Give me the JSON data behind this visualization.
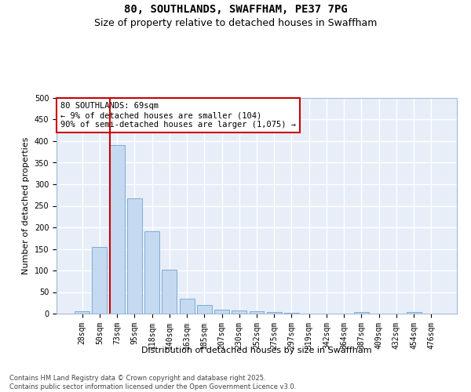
{
  "title": "80, SOUTHLANDS, SWAFFHAM, PE37 7PG",
  "subtitle": "Size of property relative to detached houses in Swaffham",
  "xlabel": "Distribution of detached houses by size in Swaffham",
  "ylabel": "Number of detached properties",
  "categories": [
    "28sqm",
    "50sqm",
    "73sqm",
    "95sqm",
    "118sqm",
    "140sqm",
    "163sqm",
    "185sqm",
    "207sqm",
    "230sqm",
    "252sqm",
    "275sqm",
    "297sqm",
    "319sqm",
    "342sqm",
    "364sqm",
    "387sqm",
    "409sqm",
    "432sqm",
    "454sqm",
    "476sqm"
  ],
  "values": [
    6,
    155,
    390,
    267,
    191,
    102,
    35,
    20,
    10,
    8,
    5,
    4,
    2,
    0,
    0,
    0,
    3,
    0,
    0,
    4,
    0
  ],
  "bar_color": "#c5d9f0",
  "bar_edge_color": "#7aadd4",
  "background_color": "#e8eef8",
  "grid_color": "#ffffff",
  "vline_color": "#cc0000",
  "vline_x": 1.575,
  "annotation_text": "80 SOUTHLANDS: 69sqm\n← 9% of detached houses are smaller (104)\n90% of semi-detached houses are larger (1,075) →",
  "ann_box_color": "#cc0000",
  "ylim": [
    0,
    500
  ],
  "yticks": [
    0,
    50,
    100,
    150,
    200,
    250,
    300,
    350,
    400,
    450,
    500
  ],
  "footer": "Contains HM Land Registry data © Crown copyright and database right 2025.\nContains public sector information licensed under the Open Government Licence v3.0.",
  "title_fontsize": 10,
  "subtitle_fontsize": 9,
  "ylabel_fontsize": 8,
  "xlabel_fontsize": 8,
  "tick_fontsize": 7,
  "ann_fontsize": 7.5,
  "footer_fontsize": 6
}
